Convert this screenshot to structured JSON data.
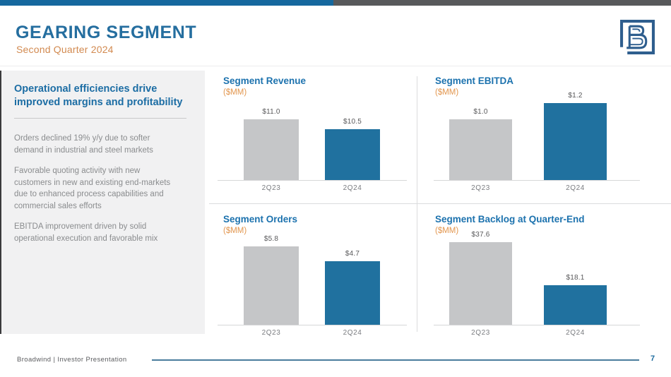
{
  "theme": {
    "topbar_blue": "#15689E",
    "topbar_gray": "#58595B",
    "title_blue": "#256E9F",
    "chart_title_blue": "#1C72AE",
    "orange": "#D28A50",
    "bar_colors": [
      "#C5C6C8",
      "#20719F"
    ]
  },
  "header": {
    "title": "GEARING SEGMENT",
    "subtitle": "Second Quarter 2024",
    "logo_name": "broadwind-logo"
  },
  "sidebar": {
    "heading": "Operational efficiencies drive improved margins and profitability",
    "paragraphs": [
      "Orders declined 19% y/y due to softer demand in industrial and steel markets",
      "Favorable quoting activity with new customers in new and existing end-markets due to enhanced process capabilities and commercial sales efforts",
      "EBITDA improvement driven by solid operational execution and favorable mix"
    ]
  },
  "chart_data": [
    {
      "type": "bar",
      "title": "Segment Revenue",
      "unit_label": "($MM)",
      "categories": [
        "2Q23",
        "2Q24"
      ],
      "values": [
        11.0,
        10.5
      ],
      "value_labels": [
        "$11.0",
        "$10.5"
      ],
      "ylim": [
        8,
        12
      ],
      "grid": false,
      "legend": false
    },
    {
      "type": "bar",
      "title": "Segment EBITDA",
      "unit_label": "($MM)",
      "categories": [
        "2Q23",
        "2Q24"
      ],
      "values": [
        1.0,
        1.2
      ],
      "value_labels": [
        "$1.0",
        "$1.2"
      ],
      "ylim": [
        0.25,
        1.25
      ],
      "grid": false,
      "legend": false
    },
    {
      "type": "bar",
      "title": "Segment Orders",
      "unit_label": "($MM)",
      "categories": [
        "2Q23",
        "2Q24"
      ],
      "values": [
        5.8,
        4.7
      ],
      "value_labels": [
        "$5.8",
        "$4.7"
      ],
      "ylim": [
        0,
        6.3
      ],
      "grid": false,
      "legend": false
    },
    {
      "type": "bar",
      "title": "Segment Backlog at Quarter-End",
      "unit_label": "($MM)",
      "categories": [
        "2Q23",
        "2Q24"
      ],
      "values": [
        37.6,
        18.1
      ],
      "value_labels": [
        "$37.6",
        "$18.1"
      ],
      "ylim": [
        0,
        38.5
      ],
      "grid": false,
      "legend": false
    }
  ],
  "footer": {
    "left_text": "Broadwind | Investor Presentation",
    "page_number": "7"
  }
}
